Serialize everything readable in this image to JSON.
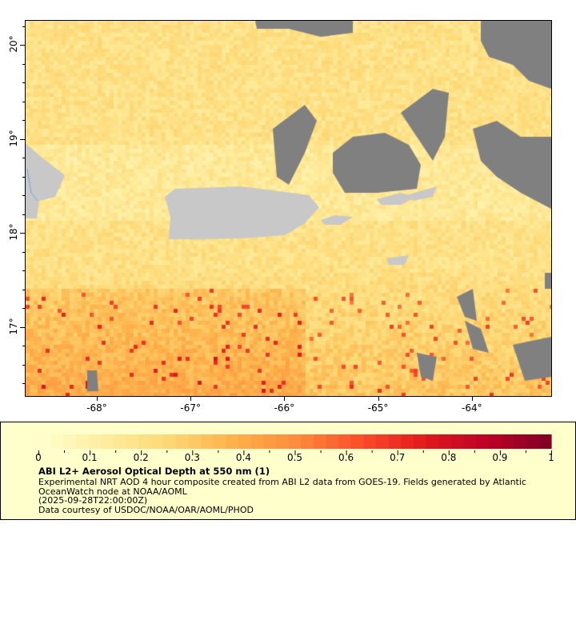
{
  "map": {
    "lat_labels": [
      "20°",
      "19°",
      "18°",
      "17°"
    ],
    "lat_values": [
      20,
      19,
      18,
      17
    ],
    "lon_labels": [
      "-68°",
      "-67°",
      "-66°",
      "-65°",
      "-64°"
    ],
    "lon_values": [
      -68,
      -67,
      -66,
      -65,
      -64
    ],
    "colors": {
      "land": "#c8c8c8",
      "no_data": "#808080",
      "river": "#6fa8dc"
    }
  },
  "colorbar": {
    "min": 0,
    "max": 1,
    "tick_labels": [
      "0",
      "0.1",
      "0.2",
      "0.3",
      "0.4",
      "0.5",
      "0.6",
      "0.7",
      "0.8",
      "0.9",
      "1"
    ],
    "palette": [
      "#ffffcc",
      "#ffeda0",
      "#fed976",
      "#feb24c",
      "#fd8d3c",
      "#fc4e2a",
      "#e31a1c",
      "#bd0026",
      "#800026"
    ]
  },
  "legend": {
    "title": "ABI L2+ Aerosol Optical Depth at 550 nm (1)",
    "line1": "Experimental NRT AOD 4 hour composite created from ABI L2 data from GOES-19. Fields generated by Atlantic",
    "line2": "OceanWatch node at NOAA/AOML",
    "line3": "(2025-09-28T22:00:00Z)",
    "line4": "Data courtesy of USDOC/NOAA/OAR/AOML/PHOD"
  }
}
